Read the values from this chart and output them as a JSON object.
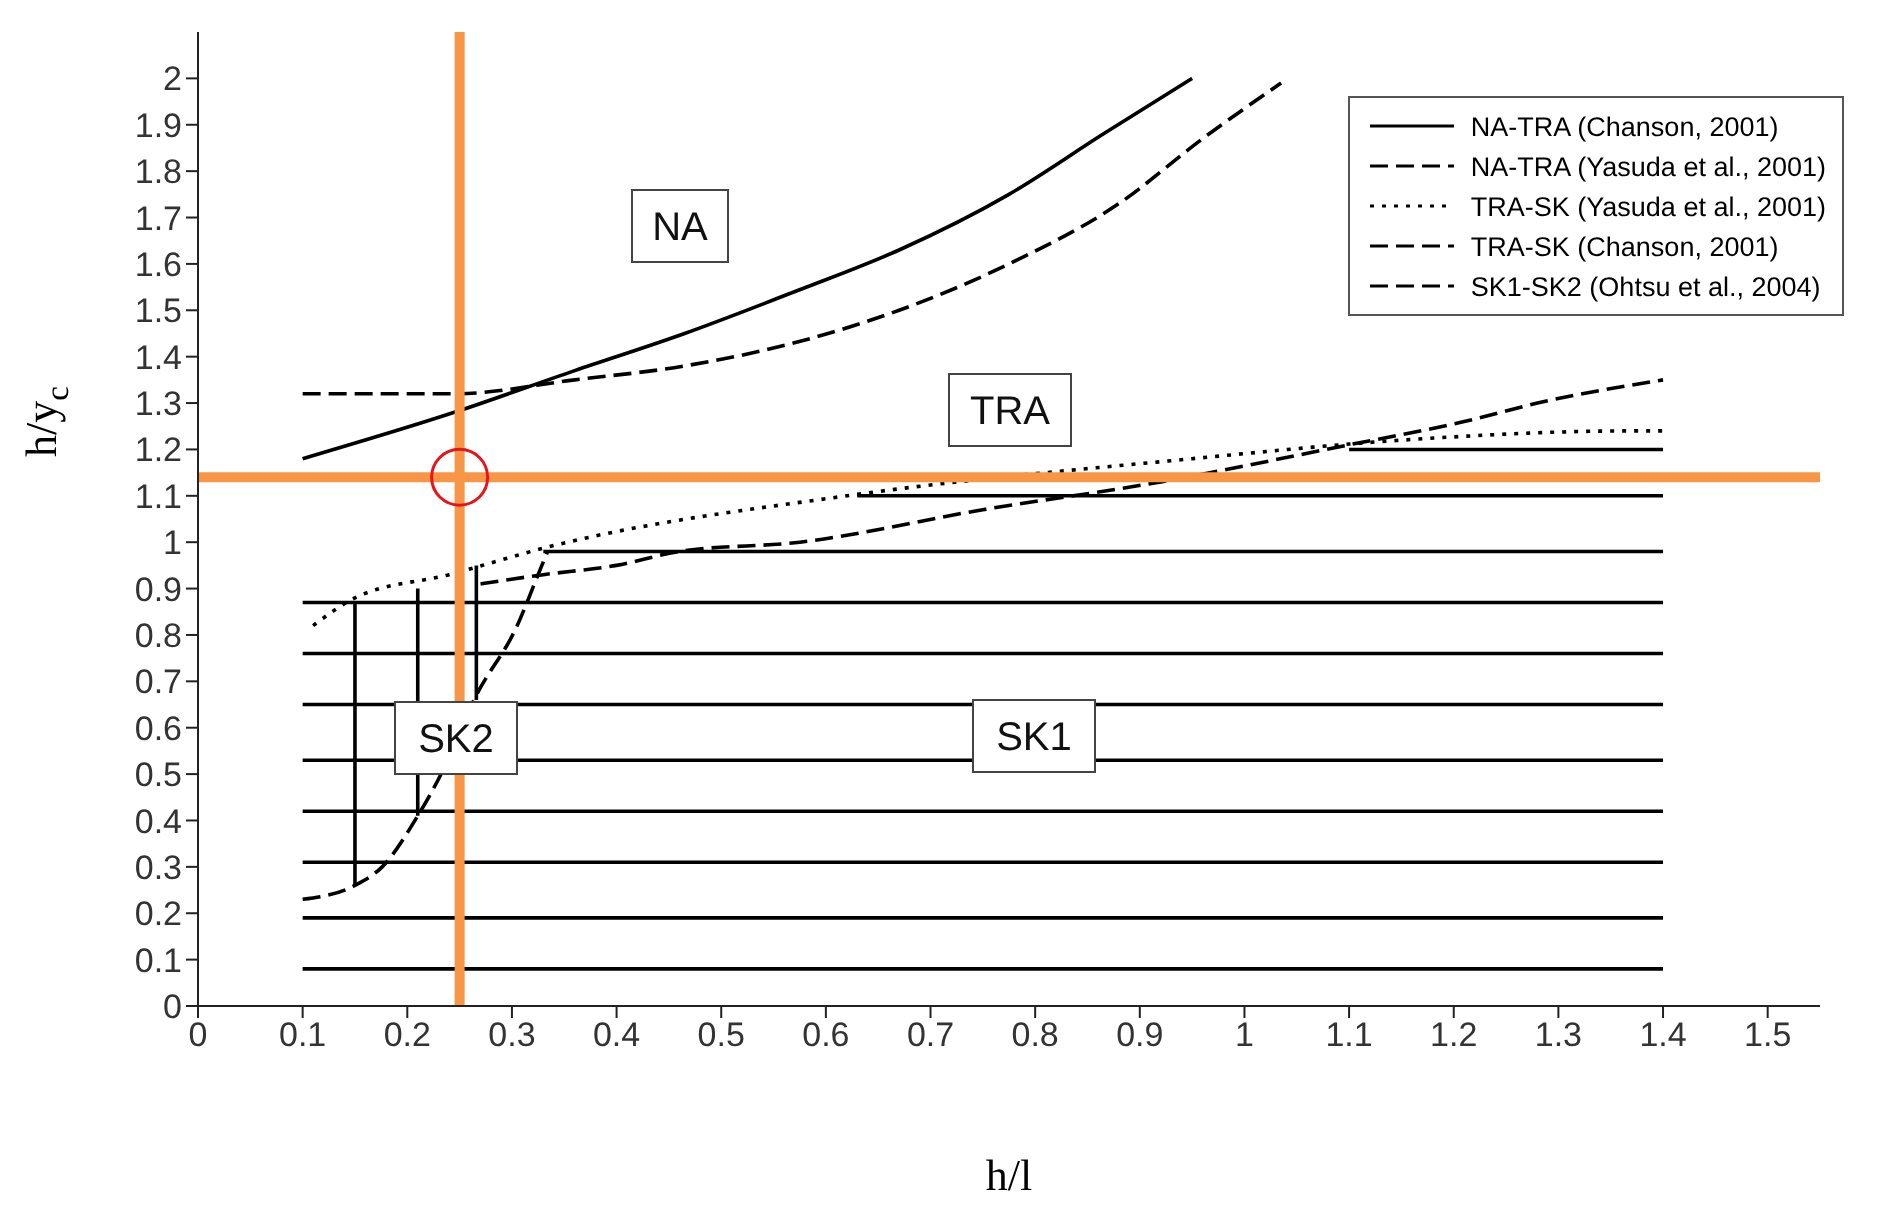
{
  "chart_data": {
    "type": "line",
    "xlabel": "h/l",
    "ylabel": "h/y$_{c}$",
    "xlim": [
      0,
      1.55
    ],
    "ylim": [
      0,
      2.1
    ],
    "xticks": [
      0,
      0.1,
      0.2,
      0.3,
      0.4,
      0.5,
      0.6,
      0.7,
      0.8,
      0.9,
      1,
      1.1,
      1.2,
      1.3,
      1.4,
      1.5
    ],
    "yticks": [
      0,
      0.1,
      0.2,
      0.3,
      0.4,
      0.5,
      0.6,
      0.7,
      0.8,
      0.9,
      1,
      1.1,
      1.2,
      1.3,
      1.4,
      1.5,
      1.6,
      1.7,
      1.8,
      1.9,
      2
    ],
    "legend": "top right",
    "marker": "none",
    "grid": false,
    "series": [
      {
        "name": "NA-TRA (Chanson, 2001)",
        "color": "#000000",
        "line_style": "solid",
        "x": [
          0.1,
          0.245,
          0.36,
          0.465,
          0.57,
          0.67,
          0.775,
          0.865,
          0.95
        ],
        "values": [
          1.18,
          1.28,
          1.37,
          1.45,
          1.54,
          1.63,
          1.75,
          1.88,
          2.0
        ]
      },
      {
        "name": "NA-TRA (Yasuda et al., 2001)",
        "color": "#000000",
        "line_style": "dashed",
        "x": [
          0.1,
          0.245,
          0.36,
          0.465,
          0.57,
          0.67,
          0.775,
          0.88,
          0.96,
          1.035
        ],
        "values": [
          1.32,
          1.32,
          1.35,
          1.38,
          1.43,
          1.5,
          1.6,
          1.73,
          1.87,
          1.99
        ]
      },
      {
        "name": "TRA-SK (Yasuda et al., 2001)",
        "color": "#000000",
        "line_style": "dotted",
        "x": [
          0.11,
          0.15,
          0.24,
          0.335,
          0.62,
          0.95,
          1.15,
          1.37,
          1.4
        ],
        "values": [
          0.82,
          0.88,
          0.93,
          0.99,
          1.1,
          1.18,
          1.22,
          1.24,
          1.24
        ]
      },
      {
        "name": "TRA-SK (Chanson, 2001)",
        "color": "#000000",
        "line_style": "dashed",
        "x": [
          0.27,
          0.33,
          0.4,
          0.46,
          0.575,
          0.75,
          0.92,
          1.1,
          1.21,
          1.28,
          1.4
        ],
        "values": [
          0.91,
          0.93,
          0.95,
          0.98,
          1.0,
          1.07,
          1.13,
          1.21,
          1.26,
          1.3,
          1.35
        ]
      },
      {
        "name": "SK1-SK2 (Ohtsu et al., 2004)",
        "color": "#000000",
        "line_style": "dashed",
        "x": [
          0.1,
          0.15,
          0.176,
          0.21,
          0.23,
          0.266,
          0.305,
          0.325,
          0.334
        ],
        "values": [
          0.23,
          0.26,
          0.3,
          0.41,
          0.49,
          0.67,
          0.82,
          0.93,
          0.98
        ]
      },
      {
        "color": "#000000",
        "line_style": "solid",
        "x": [
          0.1,
          1.4
        ],
        "values": [
          0.08,
          0.08
        ]
      },
      {
        "color": "#000000",
        "line_style": "solid",
        "x": [
          0.1,
          1.4
        ],
        "values": [
          0.19,
          0.19
        ]
      },
      {
        "color": "#000000",
        "line_style": "solid",
        "x": [
          0.1,
          1.4
        ],
        "values": [
          0.31,
          0.31
        ]
      },
      {
        "color": "#000000",
        "line_style": "solid",
        "x": [
          0.1,
          1.4
        ],
        "values": [
          0.42,
          0.42
        ]
      },
      {
        "color": "#000000",
        "line_style": "solid",
        "x": [
          0.1,
          1.4
        ],
        "values": [
          0.53,
          0.53
        ]
      },
      {
        "color": "#000000",
        "line_style": "solid",
        "x": [
          0.1,
          1.4
        ],
        "values": [
          0.65,
          0.65
        ]
      },
      {
        "color": "#000000",
        "line_style": "solid",
        "x": [
          0.1,
          1.4
        ],
        "values": [
          0.76,
          0.76
        ]
      },
      {
        "color": "#000000",
        "line_style": "solid",
        "x": [
          0.1,
          1.4
        ],
        "values": [
          0.87,
          0.87
        ]
      },
      {
        "color": "#000000",
        "line_style": "solid",
        "x": [
          0.33,
          1.4
        ],
        "values": [
          0.98,
          0.98
        ]
      },
      {
        "color": "#000000",
        "line_style": "solid",
        "x": [
          0.63,
          1.4
        ],
        "values": [
          1.1,
          1.1
        ]
      },
      {
        "color": "#000000",
        "line_style": "solid",
        "x": [
          1.1,
          1.4
        ],
        "values": [
          1.2,
          1.2
        ]
      },
      {
        "color": "#000000",
        "line_style": "solid",
        "x": [
          0.15,
          0.15
        ],
        "values": [
          0.26,
          0.87
        ]
      },
      {
        "color": "#000000",
        "line_style": "solid",
        "x": [
          0.21,
          0.21
        ],
        "values": [
          0.41,
          0.9
        ]
      },
      {
        "color": "#000000",
        "line_style": "solid",
        "x": [
          0.266,
          0.266
        ],
        "values": [
          0.66,
          0.95
        ]
      }
    ],
    "ref_lines": [
      {
        "axis": "x",
        "value": 0.25,
        "color": "#f79646"
      },
      {
        "axis": "y",
        "value": 1.14,
        "color": "#f79646"
      }
    ],
    "annotations": [
      "NA",
      "TRA",
      "SK2",
      "SK1"
    ]
  }
}
